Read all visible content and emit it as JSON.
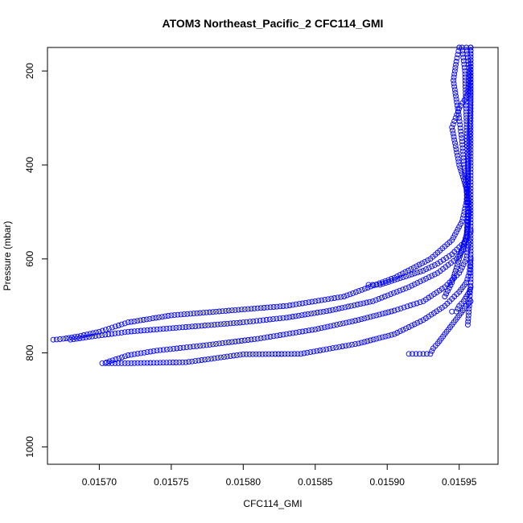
{
  "chart_data": {
    "type": "scatter",
    "title": "ATOM3 Northeast_Pacific_2 CFC114_GMI",
    "xlabel": "CFC114_GMI",
    "ylabel": "Pressure (mbar)",
    "xlim": [
      0.015664,
      0.015977
    ],
    "ylim": [
      1037,
      150
    ],
    "y_reversed": true,
    "grid": false,
    "marker": "open-circle",
    "color": "#0000ff",
    "x_ticks": [
      0.0157,
      0.01575,
      0.0158,
      0.01585,
      0.0159,
      0.01595
    ],
    "x_tick_labels": [
      "0.01570",
      "0.01575",
      "0.01580",
      "0.01585",
      "0.01590",
      "0.01595"
    ],
    "y_ticks": [
      200,
      400,
      600,
      800,
      1000
    ],
    "y_tick_labels": [
      "200",
      "400",
      "600",
      "800",
      "1000"
    ],
    "series": [
      {
        "x": [
          0.015958,
          0.015958,
          0.015957,
          0.015956,
          0.015955,
          0.015952,
          0.015945,
          0.01593,
          0.015905,
          0.01587,
          0.01583,
          0.01579,
          0.01575,
          0.01572,
          0.0157,
          0.015685,
          0.015675,
          0.015668
        ],
        "y": [
          150,
          250,
          350,
          430,
          480,
          520,
          560,
          600,
          640,
          680,
          700,
          710,
          720,
          735,
          755,
          765,
          770,
          772
        ]
      },
      {
        "x": [
          0.015957,
          0.015956,
          0.015953,
          0.015948,
          0.015935,
          0.015915,
          0.01589,
          0.01586,
          0.01583,
          0.0158,
          0.01576,
          0.01572,
          0.015695,
          0.01568
        ],
        "y": [
          480,
          540,
          580,
          600,
          630,
          660,
          690,
          710,
          725,
          735,
          745,
          755,
          765,
          772
        ]
      },
      {
        "x": [
          0.015957,
          0.015955,
          0.01595,
          0.01594,
          0.015925,
          0.015905,
          0.01588,
          0.01585,
          0.01581,
          0.01577,
          0.01574,
          0.01572,
          0.015705
        ],
        "y": [
          560,
          600,
          630,
          660,
          690,
          710,
          730,
          750,
          770,
          785,
          795,
          805,
          820
        ]
      },
      {
        "x": [
          0.015958,
          0.015957,
          0.015955,
          0.01595,
          0.01594,
          0.015925,
          0.015905,
          0.01588,
          0.01584,
          0.0158,
          0.01576,
          0.01572,
          0.015702
        ],
        "y": [
          600,
          630,
          650,
          670,
          700,
          730,
          760,
          780,
          802,
          803,
          820,
          822,
          822
        ]
      },
      {
        "x": [
          0.015887,
          0.01589,
          0.015895,
          0.015905,
          0.015915,
          0.015925,
          0.015935,
          0.015945,
          0.015955,
          0.015958
        ],
        "y": [
          655,
          655,
          655,
          645,
          635,
          625,
          610,
          590,
          560,
          540
        ]
      },
      {
        "x": [
          0.015915,
          0.01592,
          0.015925,
          0.01593,
          0.015932,
          0.015935,
          0.01594,
          0.015945,
          0.01595,
          0.015955,
          0.015958
        ],
        "y": [
          802,
          802,
          802,
          802,
          790,
          780,
          760,
          740,
          720,
          700,
          690
        ]
      },
      {
        "x": [
          0.015945,
          0.015948,
          0.01595,
          0.015953,
          0.015955,
          0.015957,
          0.015958
        ],
        "y": [
          712,
          712,
          700,
          690,
          680,
          670,
          660
        ]
      },
      {
        "x": [
          0.015958,
          0.015958,
          0.015958,
          0.015958,
          0.015958,
          0.015957,
          0.015956
        ],
        "y": [
          150,
          300,
          450,
          550,
          650,
          700,
          740
        ]
      },
      {
        "x": [
          0.015955,
          0.015957,
          0.015956,
          0.01595,
          0.015945,
          0.01595,
          0.015955,
          0.015956,
          0.015955
        ],
        "y": [
          150,
          200,
          250,
          280,
          320,
          400,
          450,
          500,
          560
        ]
      },
      {
        "x": [
          0.01595,
          0.015948,
          0.015946,
          0.015948,
          0.01595,
          0.015952,
          0.015954,
          0.015956
        ],
        "y": [
          150,
          180,
          220,
          260,
          300,
          350,
          420,
          480
        ]
      },
      {
        "x": [
          0.015952,
          0.015954,
          0.015955,
          0.015956,
          0.015957,
          0.015955,
          0.01595,
          0.015945,
          0.01594
        ],
        "y": [
          150,
          200,
          300,
          400,
          500,
          550,
          600,
          650,
          680
        ]
      }
    ]
  }
}
